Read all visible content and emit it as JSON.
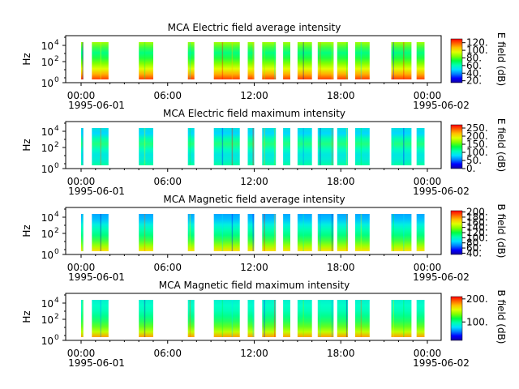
{
  "colors": {
    "background": "#ffffff",
    "axis": "#000000",
    "colormap": [
      "#1400a0",
      "#0000ff",
      "#0080ff",
      "#00e0ff",
      "#00ffb0",
      "#00ff40",
      "#80ff00",
      "#e0ff00",
      "#ffc000",
      "#ff6000",
      "#ff0000"
    ]
  },
  "chart_data": [
    {
      "type": "heatmap",
      "title": "MCA  Electric field average intensity",
      "ylabel": "Hz",
      "yscale": "log",
      "ylim": [
        1,
        100000
      ],
      "yticks": [
        "10",
        "10",
        "10"
      ],
      "ytick_exponents": [
        "0",
        "2",
        "4"
      ],
      "xlim": [
        "1995-06-01T00:00",
        "1995-06-02T00:00"
      ],
      "xticks": [
        "00:00",
        "06:00",
        "12:00",
        "18:00",
        "00:00"
      ],
      "xdates": [
        "1995-06-01",
        "1995-06-02"
      ],
      "colorbar": {
        "label": "E field (dB)",
        "vmin": 15,
        "vmax": 130,
        "ticks": [
          "20.",
          "40.",
          "60.",
          "80.",
          "100.",
          "120."
        ]
      },
      "data_intervals_hours": [
        [
          0.0,
          0.15
        ],
        [
          0.75,
          1.9
        ],
        [
          4.0,
          5.0
        ],
        [
          7.4,
          7.85
        ],
        [
          9.2,
          11.0
        ],
        [
          11.55,
          12.0
        ],
        [
          12.55,
          13.5
        ],
        [
          14.0,
          14.5
        ],
        [
          15.0,
          16.0
        ],
        [
          16.4,
          17.5
        ],
        [
          17.75,
          18.5
        ],
        [
          19.0,
          20.0
        ],
        [
          21.5,
          22.9
        ],
        [
          23.25,
          23.8
        ]
      ]
    },
    {
      "type": "heatmap",
      "title": "MCA  Electric field maximum intensity",
      "ylabel": "Hz",
      "yscale": "log",
      "ylim": [
        1,
        100000
      ],
      "yticks": [
        "10",
        "10",
        "10"
      ],
      "ytick_exponents": [
        "0",
        "2",
        "4"
      ],
      "xlim": [
        "1995-06-01T00:00",
        "1995-06-02T00:00"
      ],
      "xticks": [
        "00:00",
        "06:00",
        "12:00",
        "18:00",
        "00:00"
      ],
      "xdates": [
        "1995-06-01",
        "1995-06-02"
      ],
      "colorbar": {
        "label": "E field (dB)",
        "vmin": 0,
        "vmax": 270,
        "ticks": [
          "0.",
          "50.",
          "100.",
          "150.",
          "200.",
          "250."
        ]
      },
      "data_intervals_hours": [
        [
          0.0,
          0.15
        ],
        [
          0.75,
          1.9
        ],
        [
          4.0,
          5.0
        ],
        [
          7.4,
          7.85
        ],
        [
          9.2,
          11.0
        ],
        [
          11.55,
          12.0
        ],
        [
          12.55,
          13.5
        ],
        [
          14.0,
          14.5
        ],
        [
          15.0,
          16.0
        ],
        [
          16.4,
          17.5
        ],
        [
          17.75,
          18.5
        ],
        [
          19.0,
          20.0
        ],
        [
          21.5,
          22.9
        ],
        [
          23.25,
          23.8
        ]
      ]
    },
    {
      "type": "heatmap",
      "title": "MCA  Magnetic field average intensity",
      "ylabel": "Hz",
      "yscale": "log",
      "ylim": [
        1,
        100000
      ],
      "yticks": [
        "10",
        "10",
        "10"
      ],
      "ytick_exponents": [
        "0",
        "2",
        "4"
      ],
      "xlim": [
        "1995-06-01T00:00",
        "1995-06-02T00:00"
      ],
      "xticks": [
        "00:00",
        "06:00",
        "12:00",
        "18:00",
        "00:00"
      ],
      "xdates": [
        "1995-06-01",
        "1995-06-02"
      ],
      "colorbar": {
        "label": "B field (dB)",
        "vmin": 35,
        "vmax": 205,
        "ticks": [
          "40.",
          "60.",
          "80.",
          "100.",
          "120.",
          "140.",
          "160.",
          "180.",
          "200."
        ]
      },
      "data_intervals_hours": [
        [
          0.0,
          0.15
        ],
        [
          0.75,
          1.9
        ],
        [
          4.0,
          5.0
        ],
        [
          7.4,
          7.85
        ],
        [
          9.2,
          11.0
        ],
        [
          11.55,
          12.0
        ],
        [
          12.55,
          13.5
        ],
        [
          14.0,
          14.5
        ],
        [
          15.0,
          16.0
        ],
        [
          16.4,
          17.5
        ],
        [
          17.75,
          18.5
        ],
        [
          19.0,
          20.0
        ],
        [
          21.5,
          22.9
        ],
        [
          23.25,
          23.8
        ]
      ]
    },
    {
      "type": "heatmap",
      "title": "MCA  Magnetic field maximum intensity",
      "ylabel": "Hz",
      "yscale": "log",
      "ylim": [
        1,
        100000
      ],
      "yticks": [
        "10",
        "10",
        "10"
      ],
      "ytick_exponents": [
        "0",
        "2",
        "4"
      ],
      "xlim": [
        "1995-06-01T00:00",
        "1995-06-02T00:00"
      ],
      "xticks": [
        "00:00",
        "06:00",
        "12:00",
        "18:00",
        "00:00"
      ],
      "xdates": [
        "1995-06-01",
        "1995-06-02"
      ],
      "colorbar": {
        "label": "B field (dB)",
        "vmin": 20,
        "vmax": 210,
        "ticks": [
          "100.",
          "200."
        ]
      },
      "data_intervals_hours": [
        [
          0.0,
          0.15
        ],
        [
          0.75,
          1.9
        ],
        [
          4.0,
          5.0
        ],
        [
          7.4,
          7.85
        ],
        [
          9.2,
          11.0
        ],
        [
          11.55,
          12.0
        ],
        [
          12.55,
          13.5
        ],
        [
          14.0,
          14.5
        ],
        [
          15.0,
          16.0
        ],
        [
          16.4,
          17.5
        ],
        [
          17.75,
          18.5
        ],
        [
          19.0,
          20.0
        ],
        [
          21.5,
          22.9
        ],
        [
          23.25,
          23.8
        ]
      ]
    }
  ]
}
